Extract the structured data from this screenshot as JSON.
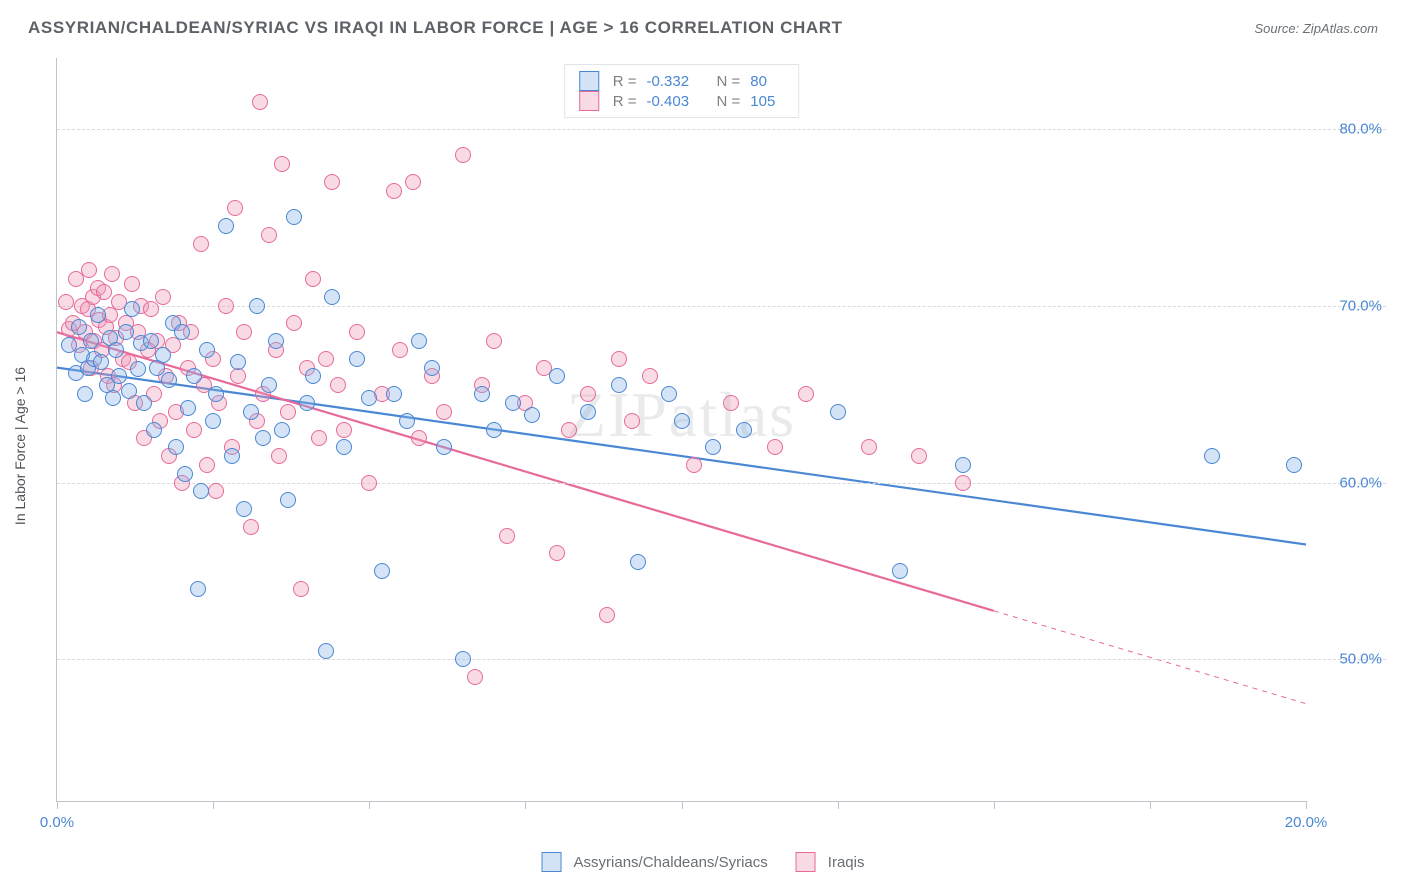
{
  "title": "ASSYRIAN/CHALDEAN/SYRIAC VS IRAQI IN LABOR FORCE | AGE > 16 CORRELATION CHART",
  "source": "Source: ZipAtlas.com",
  "watermark": "ZIPatlas",
  "y_axis_label": "In Labor Force | Age > 16",
  "chart": {
    "type": "scatter_with_trend",
    "xlim": [
      0,
      20
    ],
    "ylim": [
      42,
      84
    ],
    "yticks": [
      50,
      60,
      70,
      80
    ],
    "ytick_labels": [
      "50.0%",
      "60.0%",
      "70.0%",
      "80.0%"
    ],
    "xticks": [
      0,
      2.5,
      5,
      7.5,
      10,
      12.5,
      15,
      17.5,
      20
    ],
    "xtick_labels": [
      "0.0%",
      "",
      "",
      "",
      "",
      "",
      "",
      "",
      "20.0%"
    ],
    "grid_color": "#d7dadd",
    "axis_color": "#bfc4ca",
    "tick_label_color": "#4a87d4",
    "background_color": "#ffffff",
    "marker_radius": 8,
    "marker_border_width": 1.5,
    "trend_line_width": 2.2,
    "series": [
      {
        "name": "Assyrians/Chaldeans/Syriacs",
        "fill": "rgba(131,177,229,0.35)",
        "stroke": "#4a87d4",
        "r_value": "-0.332",
        "n_value": "80",
        "trend": {
          "x1": 0,
          "y1": 66.5,
          "x2": 20,
          "y2": 56.5,
          "x_solid_end": 20
        },
        "points": [
          [
            0.2,
            67.8
          ],
          [
            0.3,
            66.2
          ],
          [
            0.35,
            68.8
          ],
          [
            0.4,
            67.2
          ],
          [
            0.45,
            65.0
          ],
          [
            0.5,
            66.5
          ],
          [
            0.55,
            68.0
          ],
          [
            0.6,
            67.0
          ],
          [
            0.65,
            69.5
          ],
          [
            0.7,
            66.8
          ],
          [
            0.8,
            65.5
          ],
          [
            0.85,
            68.2
          ],
          [
            0.9,
            64.8
          ],
          [
            0.95,
            67.5
          ],
          [
            1.0,
            66.0
          ],
          [
            1.1,
            68.5
          ],
          [
            1.15,
            65.2
          ],
          [
            1.2,
            69.8
          ],
          [
            1.3,
            66.4
          ],
          [
            1.35,
            67.9
          ],
          [
            1.4,
            64.5
          ],
          [
            1.5,
            68.0
          ],
          [
            1.55,
            63.0
          ],
          [
            1.6,
            66.5
          ],
          [
            1.7,
            67.2
          ],
          [
            1.8,
            65.8
          ],
          [
            1.85,
            69.0
          ],
          [
            1.9,
            62.0
          ],
          [
            2.0,
            68.5
          ],
          [
            2.05,
            60.5
          ],
          [
            2.1,
            64.2
          ],
          [
            2.2,
            66.0
          ],
          [
            2.25,
            54.0
          ],
          [
            2.3,
            59.5
          ],
          [
            2.4,
            67.5
          ],
          [
            2.5,
            63.5
          ],
          [
            2.55,
            65.0
          ],
          [
            2.7,
            74.5
          ],
          [
            2.8,
            61.5
          ],
          [
            2.9,
            66.8
          ],
          [
            3.0,
            58.5
          ],
          [
            3.1,
            64.0
          ],
          [
            3.2,
            70.0
          ],
          [
            3.3,
            62.5
          ],
          [
            3.4,
            65.5
          ],
          [
            3.5,
            68.0
          ],
          [
            3.6,
            63.0
          ],
          [
            3.7,
            59.0
          ],
          [
            3.8,
            75.0
          ],
          [
            4.0,
            64.5
          ],
          [
            4.1,
            66.0
          ],
          [
            4.3,
            50.5
          ],
          [
            4.4,
            70.5
          ],
          [
            4.6,
            62.0
          ],
          [
            4.8,
            67.0
          ],
          [
            5.0,
            64.8
          ],
          [
            5.2,
            55.0
          ],
          [
            5.4,
            65.0
          ],
          [
            5.6,
            63.5
          ],
          [
            5.8,
            68.0
          ],
          [
            6.0,
            66.5
          ],
          [
            6.2,
            62.0
          ],
          [
            6.5,
            50.0
          ],
          [
            6.8,
            65.0
          ],
          [
            7.0,
            63.0
          ],
          [
            7.3,
            64.5
          ],
          [
            7.6,
            63.8
          ],
          [
            8.0,
            66.0
          ],
          [
            8.5,
            64.0
          ],
          [
            9.0,
            65.5
          ],
          [
            9.3,
            55.5
          ],
          [
            9.8,
            65.0
          ],
          [
            10.0,
            63.5
          ],
          [
            10.5,
            62.0
          ],
          [
            11.0,
            63.0
          ],
          [
            12.5,
            64.0
          ],
          [
            13.5,
            55.0
          ],
          [
            14.5,
            61.0
          ],
          [
            18.5,
            61.5
          ],
          [
            19.8,
            61.0
          ]
        ]
      },
      {
        "name": "Iraqis",
        "fill": "rgba(239,152,182,0.35)",
        "stroke": "#e76a9a",
        "r_value": "-0.403",
        "n_value": "105",
        "trend": {
          "x1": 0,
          "y1": 68.5,
          "x2": 20,
          "y2": 47.5,
          "x_solid_end": 15
        },
        "points": [
          [
            0.15,
            70.2
          ],
          [
            0.2,
            68.7
          ],
          [
            0.25,
            69.0
          ],
          [
            0.3,
            71.5
          ],
          [
            0.35,
            67.8
          ],
          [
            0.4,
            70.0
          ],
          [
            0.45,
            68.5
          ],
          [
            0.5,
            69.8
          ],
          [
            0.52,
            72.0
          ],
          [
            0.55,
            66.5
          ],
          [
            0.58,
            70.5
          ],
          [
            0.6,
            68.0
          ],
          [
            0.65,
            71.0
          ],
          [
            0.68,
            69.2
          ],
          [
            0.72,
            67.5
          ],
          [
            0.75,
            70.8
          ],
          [
            0.78,
            68.8
          ],
          [
            0.82,
            66.0
          ],
          [
            0.85,
            69.5
          ],
          [
            0.88,
            71.8
          ],
          [
            0.92,
            65.5
          ],
          [
            0.95,
            68.2
          ],
          [
            1.0,
            70.2
          ],
          [
            1.05,
            67.0
          ],
          [
            1.1,
            69.0
          ],
          [
            1.15,
            66.8
          ],
          [
            1.2,
            71.2
          ],
          [
            1.25,
            64.5
          ],
          [
            1.3,
            68.5
          ],
          [
            1.35,
            70.0
          ],
          [
            1.4,
            62.5
          ],
          [
            1.45,
            67.5
          ],
          [
            1.5,
            69.8
          ],
          [
            1.55,
            65.0
          ],
          [
            1.6,
            68.0
          ],
          [
            1.65,
            63.5
          ],
          [
            1.7,
            70.5
          ],
          [
            1.75,
            66.0
          ],
          [
            1.8,
            61.5
          ],
          [
            1.85,
            67.8
          ],
          [
            1.9,
            64.0
          ],
          [
            1.95,
            69.0
          ],
          [
            2.0,
            60.0
          ],
          [
            2.1,
            66.5
          ],
          [
            2.15,
            68.5
          ],
          [
            2.2,
            63.0
          ],
          [
            2.3,
            73.5
          ],
          [
            2.35,
            65.5
          ],
          [
            2.4,
            61.0
          ],
          [
            2.5,
            67.0
          ],
          [
            2.55,
            59.5
          ],
          [
            2.6,
            64.5
          ],
          [
            2.7,
            70.0
          ],
          [
            2.8,
            62.0
          ],
          [
            2.85,
            75.5
          ],
          [
            2.9,
            66.0
          ],
          [
            3.0,
            68.5
          ],
          [
            3.1,
            57.5
          ],
          [
            3.2,
            63.5
          ],
          [
            3.25,
            81.5
          ],
          [
            3.3,
            65.0
          ],
          [
            3.4,
            74.0
          ],
          [
            3.5,
            67.5
          ],
          [
            3.55,
            61.5
          ],
          [
            3.6,
            78.0
          ],
          [
            3.7,
            64.0
          ],
          [
            3.8,
            69.0
          ],
          [
            3.9,
            54.0
          ],
          [
            4.0,
            66.5
          ],
          [
            4.1,
            71.5
          ],
          [
            4.2,
            62.5
          ],
          [
            4.3,
            67.0
          ],
          [
            4.4,
            77.0
          ],
          [
            4.5,
            65.5
          ],
          [
            4.6,
            63.0
          ],
          [
            4.8,
            68.5
          ],
          [
            5.0,
            60.0
          ],
          [
            5.2,
            65.0
          ],
          [
            5.4,
            76.5
          ],
          [
            5.5,
            67.5
          ],
          [
            5.7,
            77.0
          ],
          [
            5.8,
            62.5
          ],
          [
            6.0,
            66.0
          ],
          [
            6.2,
            64.0
          ],
          [
            6.5,
            78.5
          ],
          [
            6.7,
            49.0
          ],
          [
            6.8,
            65.5
          ],
          [
            7.0,
            68.0
          ],
          [
            7.2,
            57.0
          ],
          [
            7.5,
            64.5
          ],
          [
            7.8,
            66.5
          ],
          [
            8.0,
            56.0
          ],
          [
            8.2,
            63.0
          ],
          [
            8.5,
            65.0
          ],
          [
            8.8,
            52.5
          ],
          [
            9.0,
            67.0
          ],
          [
            9.2,
            63.5
          ],
          [
            9.5,
            66.0
          ],
          [
            10.2,
            61.0
          ],
          [
            10.8,
            64.5
          ],
          [
            11.5,
            62.0
          ],
          [
            12.0,
            65.0
          ],
          [
            13.0,
            62.0
          ],
          [
            13.8,
            61.5
          ],
          [
            14.5,
            60.0
          ]
        ]
      }
    ]
  },
  "legend_top_header": {
    "r_label": "R =",
    "n_label": "N ="
  }
}
